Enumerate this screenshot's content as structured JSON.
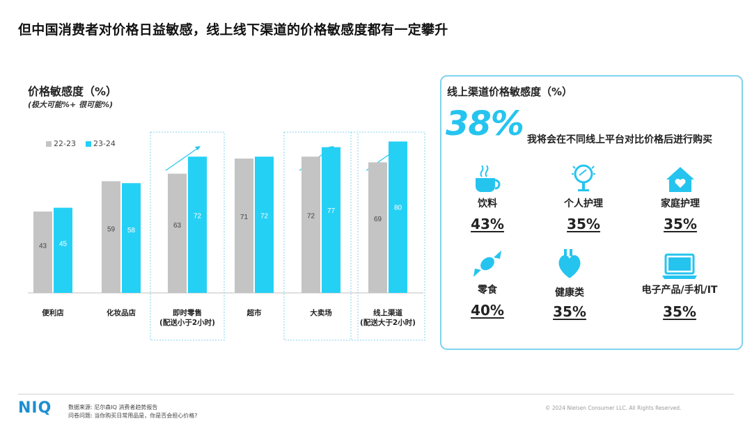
{
  "title": "但中国消费者对价格日益敏感，线上线下渠道的价格敏感度都有一定攀升",
  "chart_data": {
    "type": "bar",
    "title": "价格敏感度（%）",
    "subtitle": "(极大可能%+ 很可能%)",
    "categories": [
      "便利店",
      "化妆品店",
      "即时零售\n(配送小于2小时)",
      "超市",
      "大卖场",
      "线上渠道\n(配送大于2小时)"
    ],
    "series": [
      {
        "name": "22-23",
        "color": "#c4c4c4",
        "values": [
          43,
          59,
          63,
          71,
          72,
          69
        ]
      },
      {
        "name": "23-24",
        "color": "#25d0f5",
        "values": [
          45,
          58,
          72,
          72,
          77,
          80
        ]
      }
    ],
    "highlighted": [
      "即时零售\n(配送小于2小时)",
      "大卖场",
      "线上渠道\n(配送大于2小时)"
    ],
    "legend_position": "top-left",
    "grid": false
  },
  "panel": {
    "title": "线上渠道价格敏感度（%）",
    "big_value": "38%",
    "big_caption": "我将会在不同线上平台对比价格后进行购买",
    "categories": [
      {
        "label": "饮料",
        "value": "43%",
        "icon": "coffee-cup-icon"
      },
      {
        "label": "个人护理",
        "value": "35%",
        "icon": "mirror-icon"
      },
      {
        "label": "家庭护理",
        "value": "35%",
        "icon": "house-heart-icon"
      },
      {
        "label": "零食",
        "value": "40%",
        "icon": "candy-icon"
      },
      {
        "label": "健康类",
        "value": "35%",
        "icon": "heart-organ-icon"
      },
      {
        "label": "电子产品/手机/IT",
        "value": "35%",
        "icon": "laptop-icon"
      }
    ]
  },
  "footer": {
    "logo": "NIQ",
    "source_line1": "数据来源: 尼尔森IQ 消费者趋势报告",
    "source_line2": "问卷问题: 当你购买日常用品是，你是否会担心价格?",
    "copyright": "© 2024 Nielsen Consumer LLC. All Rights Reserved."
  },
  "colors": {
    "accent": "#25c4ef",
    "bar_old": "#c4c4c4",
    "bar_new": "#25d0f5",
    "logo": "#1d8fd1"
  }
}
